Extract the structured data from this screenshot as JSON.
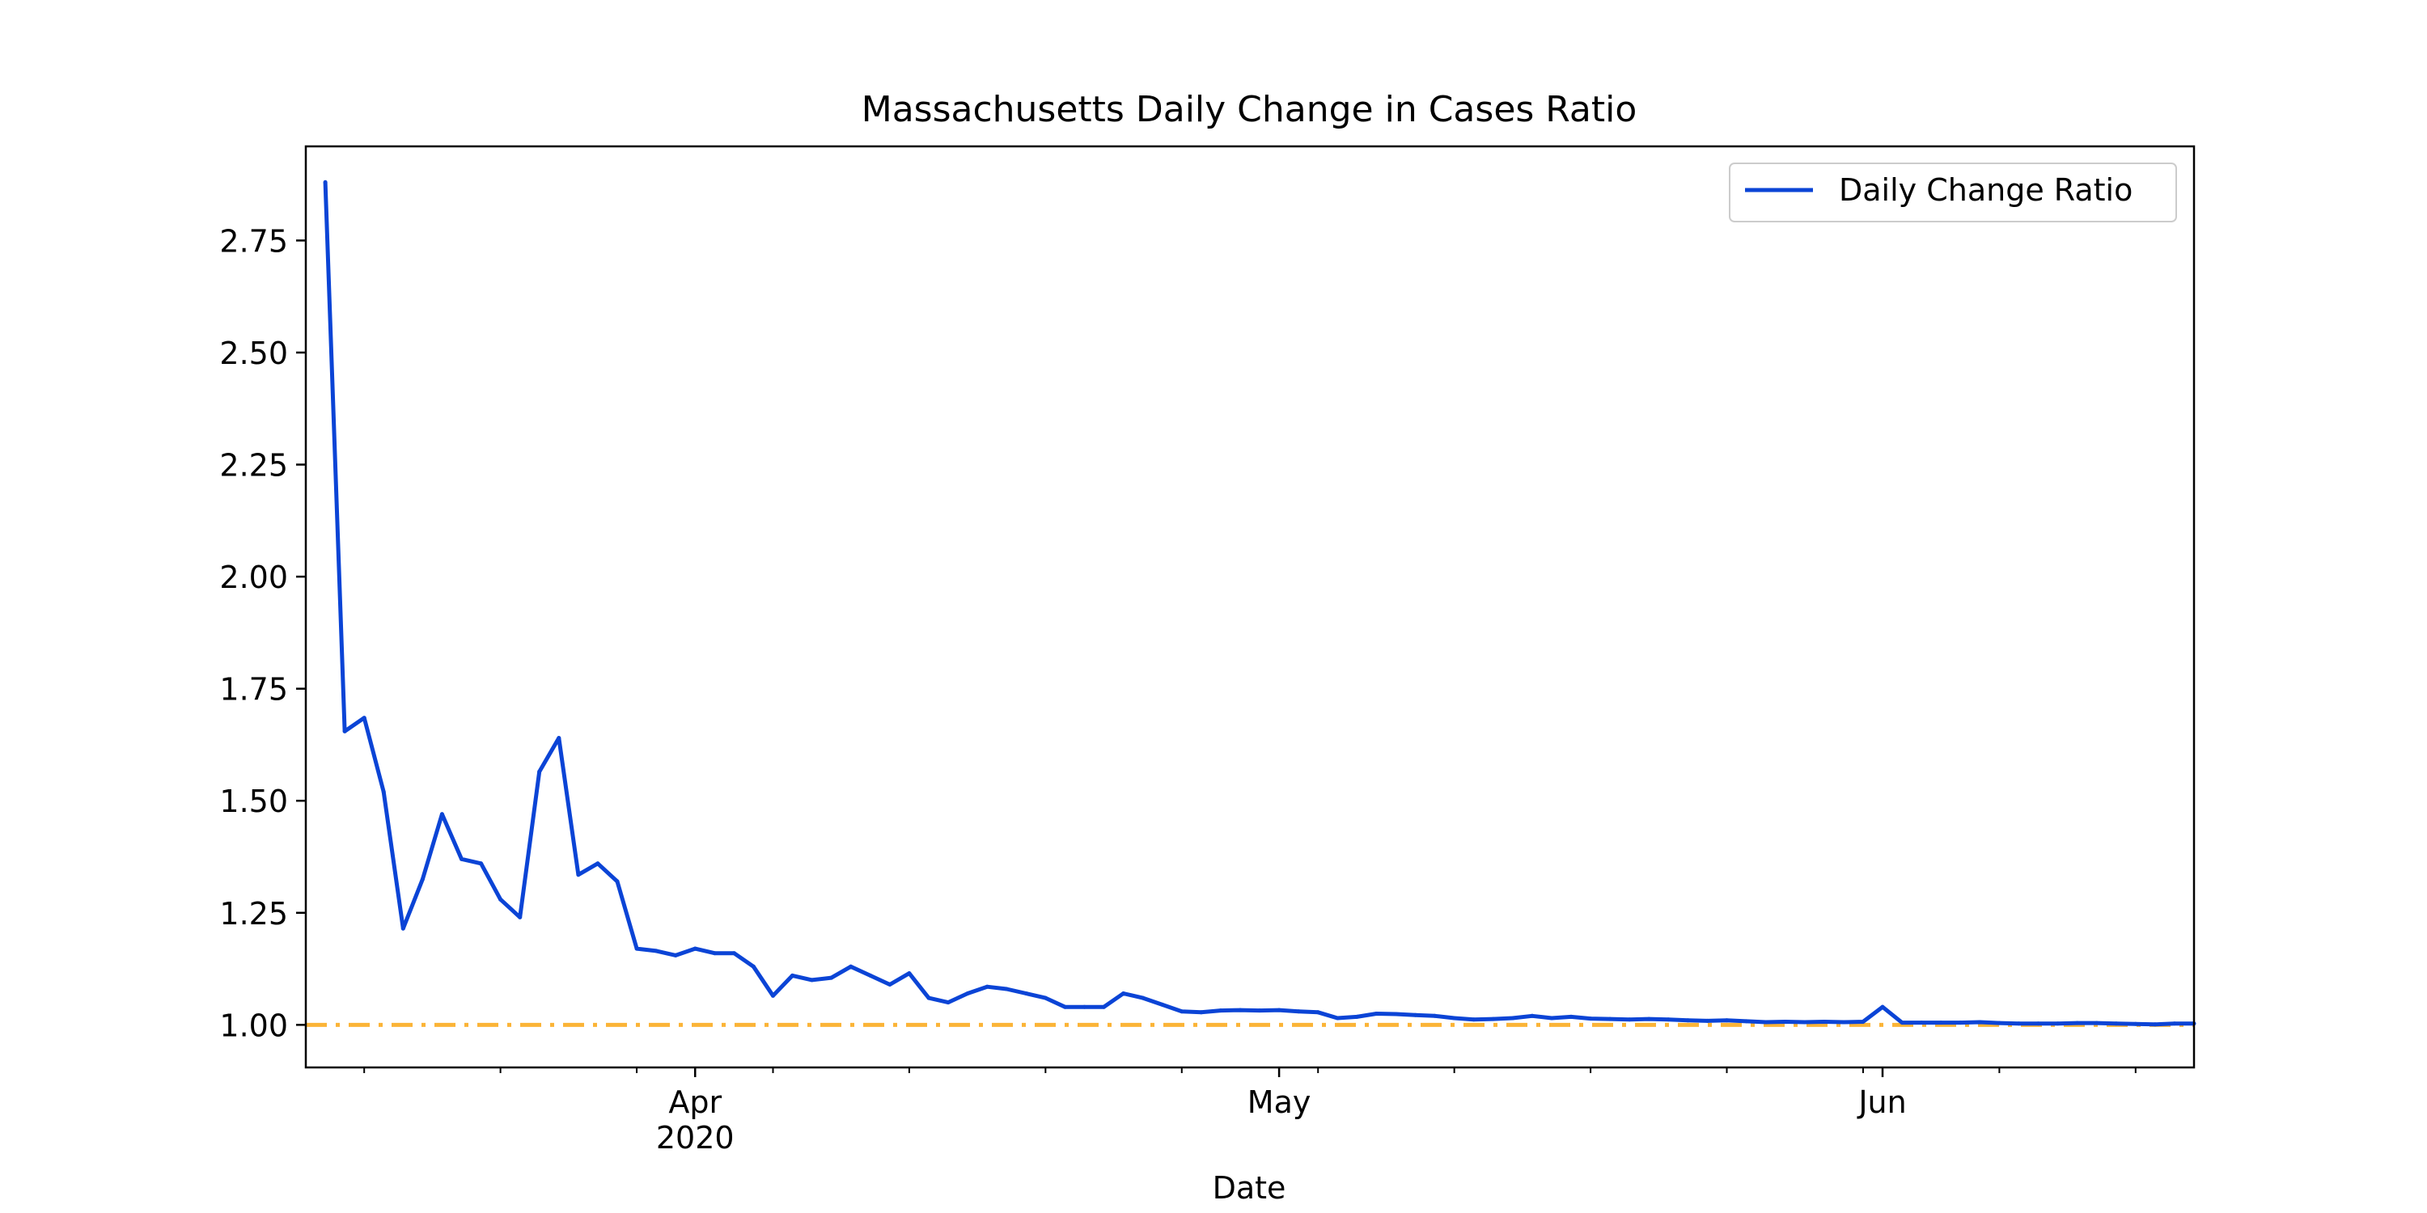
{
  "chart_data": {
    "type": "line",
    "title": "Massachusetts Daily Change in Cases Ratio",
    "xlabel": "Date",
    "ylabel": "",
    "x_start": "2020-03-12",
    "x_end": "2020-06-17",
    "ylim": [
      0.905,
      2.96
    ],
    "y_ticks": [
      1.0,
      1.25,
      1.5,
      1.75,
      2.0,
      2.25,
      2.5,
      2.75
    ],
    "y_tick_labels": [
      "1.00",
      "1.25",
      "1.50",
      "1.75",
      "2.00",
      "2.25",
      "2.50",
      "2.75"
    ],
    "x_major_ticks": [
      {
        "date": "2020-04-01",
        "label": "Apr",
        "sublabel": "2020"
      },
      {
        "date": "2020-05-01",
        "label": "May",
        "sublabel": ""
      },
      {
        "date": "2020-06-01",
        "label": "Jun",
        "sublabel": ""
      }
    ],
    "x_minor_ticks": [
      "2020-03-15",
      "2020-03-22",
      "2020-03-29",
      "2020-04-05",
      "2020-04-12",
      "2020-04-19",
      "2020-04-26",
      "2020-05-03",
      "2020-05-10",
      "2020-05-17",
      "2020-05-24",
      "2020-05-31",
      "2020-06-07",
      "2020-06-14"
    ],
    "grid": false,
    "legend_position": "upper-right",
    "series": [
      {
        "name": "Daily Change Ratio",
        "color": "#0b44d6",
        "x": [
          "2020-03-13",
          "2020-03-14",
          "2020-03-15",
          "2020-03-16",
          "2020-03-17",
          "2020-03-18",
          "2020-03-19",
          "2020-03-20",
          "2020-03-21",
          "2020-03-22",
          "2020-03-23",
          "2020-03-24",
          "2020-03-25",
          "2020-03-26",
          "2020-03-27",
          "2020-03-28",
          "2020-03-29",
          "2020-03-30",
          "2020-03-31",
          "2020-04-01",
          "2020-04-02",
          "2020-04-03",
          "2020-04-04",
          "2020-04-05",
          "2020-04-06",
          "2020-04-07",
          "2020-04-08",
          "2020-04-09",
          "2020-04-10",
          "2020-04-11",
          "2020-04-12",
          "2020-04-13",
          "2020-04-14",
          "2020-04-15",
          "2020-04-16",
          "2020-04-17",
          "2020-04-18",
          "2020-04-19",
          "2020-04-20",
          "2020-04-21",
          "2020-04-22",
          "2020-04-23",
          "2020-04-24",
          "2020-04-25",
          "2020-04-26",
          "2020-04-27",
          "2020-04-28",
          "2020-04-29",
          "2020-04-30",
          "2020-05-01",
          "2020-05-02",
          "2020-05-03",
          "2020-05-04",
          "2020-05-05",
          "2020-05-06",
          "2020-05-07",
          "2020-05-08",
          "2020-05-09",
          "2020-05-10",
          "2020-05-11",
          "2020-05-12",
          "2020-05-13",
          "2020-05-14",
          "2020-05-15",
          "2020-05-16",
          "2020-05-17",
          "2020-05-18",
          "2020-05-19",
          "2020-05-20",
          "2020-05-21",
          "2020-05-22",
          "2020-05-23",
          "2020-05-24",
          "2020-05-25",
          "2020-05-26",
          "2020-05-27",
          "2020-05-28",
          "2020-05-29",
          "2020-05-30",
          "2020-05-31",
          "2020-06-01",
          "2020-06-02",
          "2020-06-03",
          "2020-06-04",
          "2020-06-05",
          "2020-06-06",
          "2020-06-07",
          "2020-06-08",
          "2020-06-09",
          "2020-06-10",
          "2020-06-11",
          "2020-06-12",
          "2020-06-13",
          "2020-06-14",
          "2020-06-15",
          "2020-06-16",
          "2020-06-17"
        ],
        "values": [
          2.88,
          1.655,
          1.685,
          1.52,
          1.215,
          1.325,
          1.47,
          1.37,
          1.36,
          1.28,
          1.24,
          1.565,
          1.64,
          1.335,
          1.36,
          1.32,
          1.17,
          1.165,
          1.155,
          1.17,
          1.16,
          1.16,
          1.13,
          1.065,
          1.11,
          1.1,
          1.105,
          1.13,
          1.11,
          1.09,
          1.115,
          1.06,
          1.05,
          1.07,
          1.085,
          1.08,
          1.07,
          1.06,
          1.04,
          1.04,
          1.04,
          1.07,
          1.06,
          1.045,
          1.03,
          1.028,
          1.032,
          1.033,
          1.032,
          1.033,
          1.03,
          1.028,
          1.015,
          1.018,
          1.025,
          1.024,
          1.022,
          1.02,
          1.015,
          1.012,
          1.013,
          1.015,
          1.02,
          1.015,
          1.018,
          1.014,
          1.013,
          1.012,
          1.013,
          1.012,
          1.01,
          1.009,
          1.01,
          1.008,
          1.006,
          1.007,
          1.006,
          1.007,
          1.006,
          1.007,
          1.04,
          1.005,
          1.005,
          1.005,
          1.005,
          1.006,
          1.004,
          1.003,
          1.003,
          1.003,
          1.004,
          1.004,
          1.003,
          1.002,
          1.001,
          1.003,
          1.003
        ]
      }
    ],
    "reference_lines": [
      {
        "y": 1.0,
        "color": "#fbb437",
        "style": "dash-dot"
      }
    ]
  }
}
